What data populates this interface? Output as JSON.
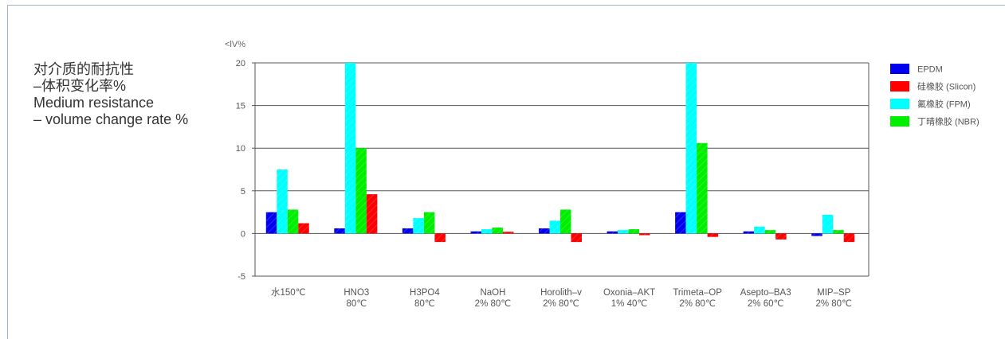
{
  "side_title": {
    "line1": "对介质的耐抗性",
    "line2": "–体积变化率%",
    "line3": "Medium resistance",
    "line4": "– volume change rate %"
  },
  "chart_data": {
    "type": "bar",
    "ylabel": "<lV%",
    "ylim": [
      -5,
      20
    ],
    "yticks": [
      -5,
      0,
      5,
      10,
      15,
      20
    ],
    "grid": true,
    "legend_position": "right",
    "categories": [
      [
        "水150℃"
      ],
      [
        "HNO3",
        "80℃"
      ],
      [
        "H3PO4",
        "80℃"
      ],
      [
        "NaOH",
        "2% 80℃"
      ],
      [
        "Horolith–v",
        "2% 80℃"
      ],
      [
        "Oxonia–AKT",
        "1% 40℃"
      ],
      [
        "Trimeta–OP",
        "2% 80℃"
      ],
      [
        "Asepto–BA3",
        "2% 60℃"
      ],
      [
        "MIP–SP",
        "2% 80℃"
      ]
    ],
    "series": [
      {
        "name": "EPDM",
        "color": "#0000ee",
        "values": [
          2.5,
          0.6,
          0.6,
          0.25,
          0.6,
          0.25,
          2.5,
          0.25,
          -0.3
        ]
      },
      {
        "name": "硅橡胶 (Slicon)",
        "color": "#ff0000",
        "values": [
          1.2,
          4.6,
          -1.0,
          0.2,
          -1.0,
          -0.2,
          -0.4,
          -0.7,
          -1.0
        ]
      },
      {
        "name": "氟橡胶 (FPM)",
        "color": "#00ffff",
        "values": [
          7.5,
          20,
          1.8,
          0.5,
          1.5,
          0.4,
          20,
          0.8,
          2.2
        ]
      },
      {
        "name": "丁晴橡胶 (NBR)",
        "color": "#00ee00",
        "values": [
          2.8,
          10,
          2.5,
          0.7,
          2.8,
          0.5,
          10.6,
          0.4,
          0.4
        ]
      }
    ],
    "series_order_in_group": [
      0,
      2,
      3,
      1
    ]
  }
}
